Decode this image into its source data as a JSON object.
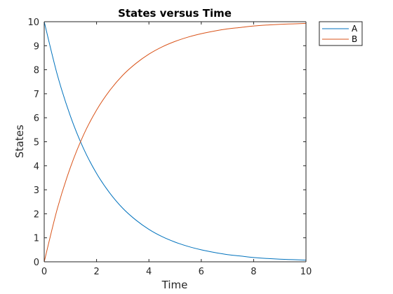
{
  "chart_data": {
    "type": "line",
    "title": "States versus Time",
    "xlabel": "Time",
    "ylabel": "States",
    "xlim": [
      0,
      10
    ],
    "ylim": [
      0,
      10
    ],
    "xticks": [
      "0",
      "2",
      "4",
      "6",
      "8",
      "10"
    ],
    "yticks": [
      "0",
      "1",
      "2",
      "3",
      "4",
      "5",
      "6",
      "7",
      "8",
      "9",
      "10"
    ],
    "grid": false,
    "legend_position": "top-right outside",
    "x": [
      0,
      0.5,
      1,
      1.5,
      2,
      2.5,
      3,
      3.5,
      4,
      4.5,
      5,
      5.5,
      6,
      6.5,
      7,
      7.5,
      8,
      8.5,
      9,
      9.5,
      10
    ],
    "series": [
      {
        "name": "A",
        "color": "#0072BD",
        "values": [
          10,
          7.79,
          6.07,
          4.72,
          3.68,
          2.87,
          2.23,
          1.74,
          1.35,
          1.05,
          0.82,
          0.64,
          0.5,
          0.39,
          0.3,
          0.24,
          0.18,
          0.14,
          0.11,
          0.09,
          0.07
        ]
      },
      {
        "name": "B",
        "color": "#D95319",
        "values": [
          0,
          2.21,
          3.93,
          5.28,
          6.32,
          7.13,
          7.77,
          8.26,
          8.65,
          8.95,
          9.18,
          9.36,
          9.5,
          9.61,
          9.7,
          9.76,
          9.82,
          9.86,
          9.89,
          9.91,
          9.93
        ]
      }
    ]
  }
}
